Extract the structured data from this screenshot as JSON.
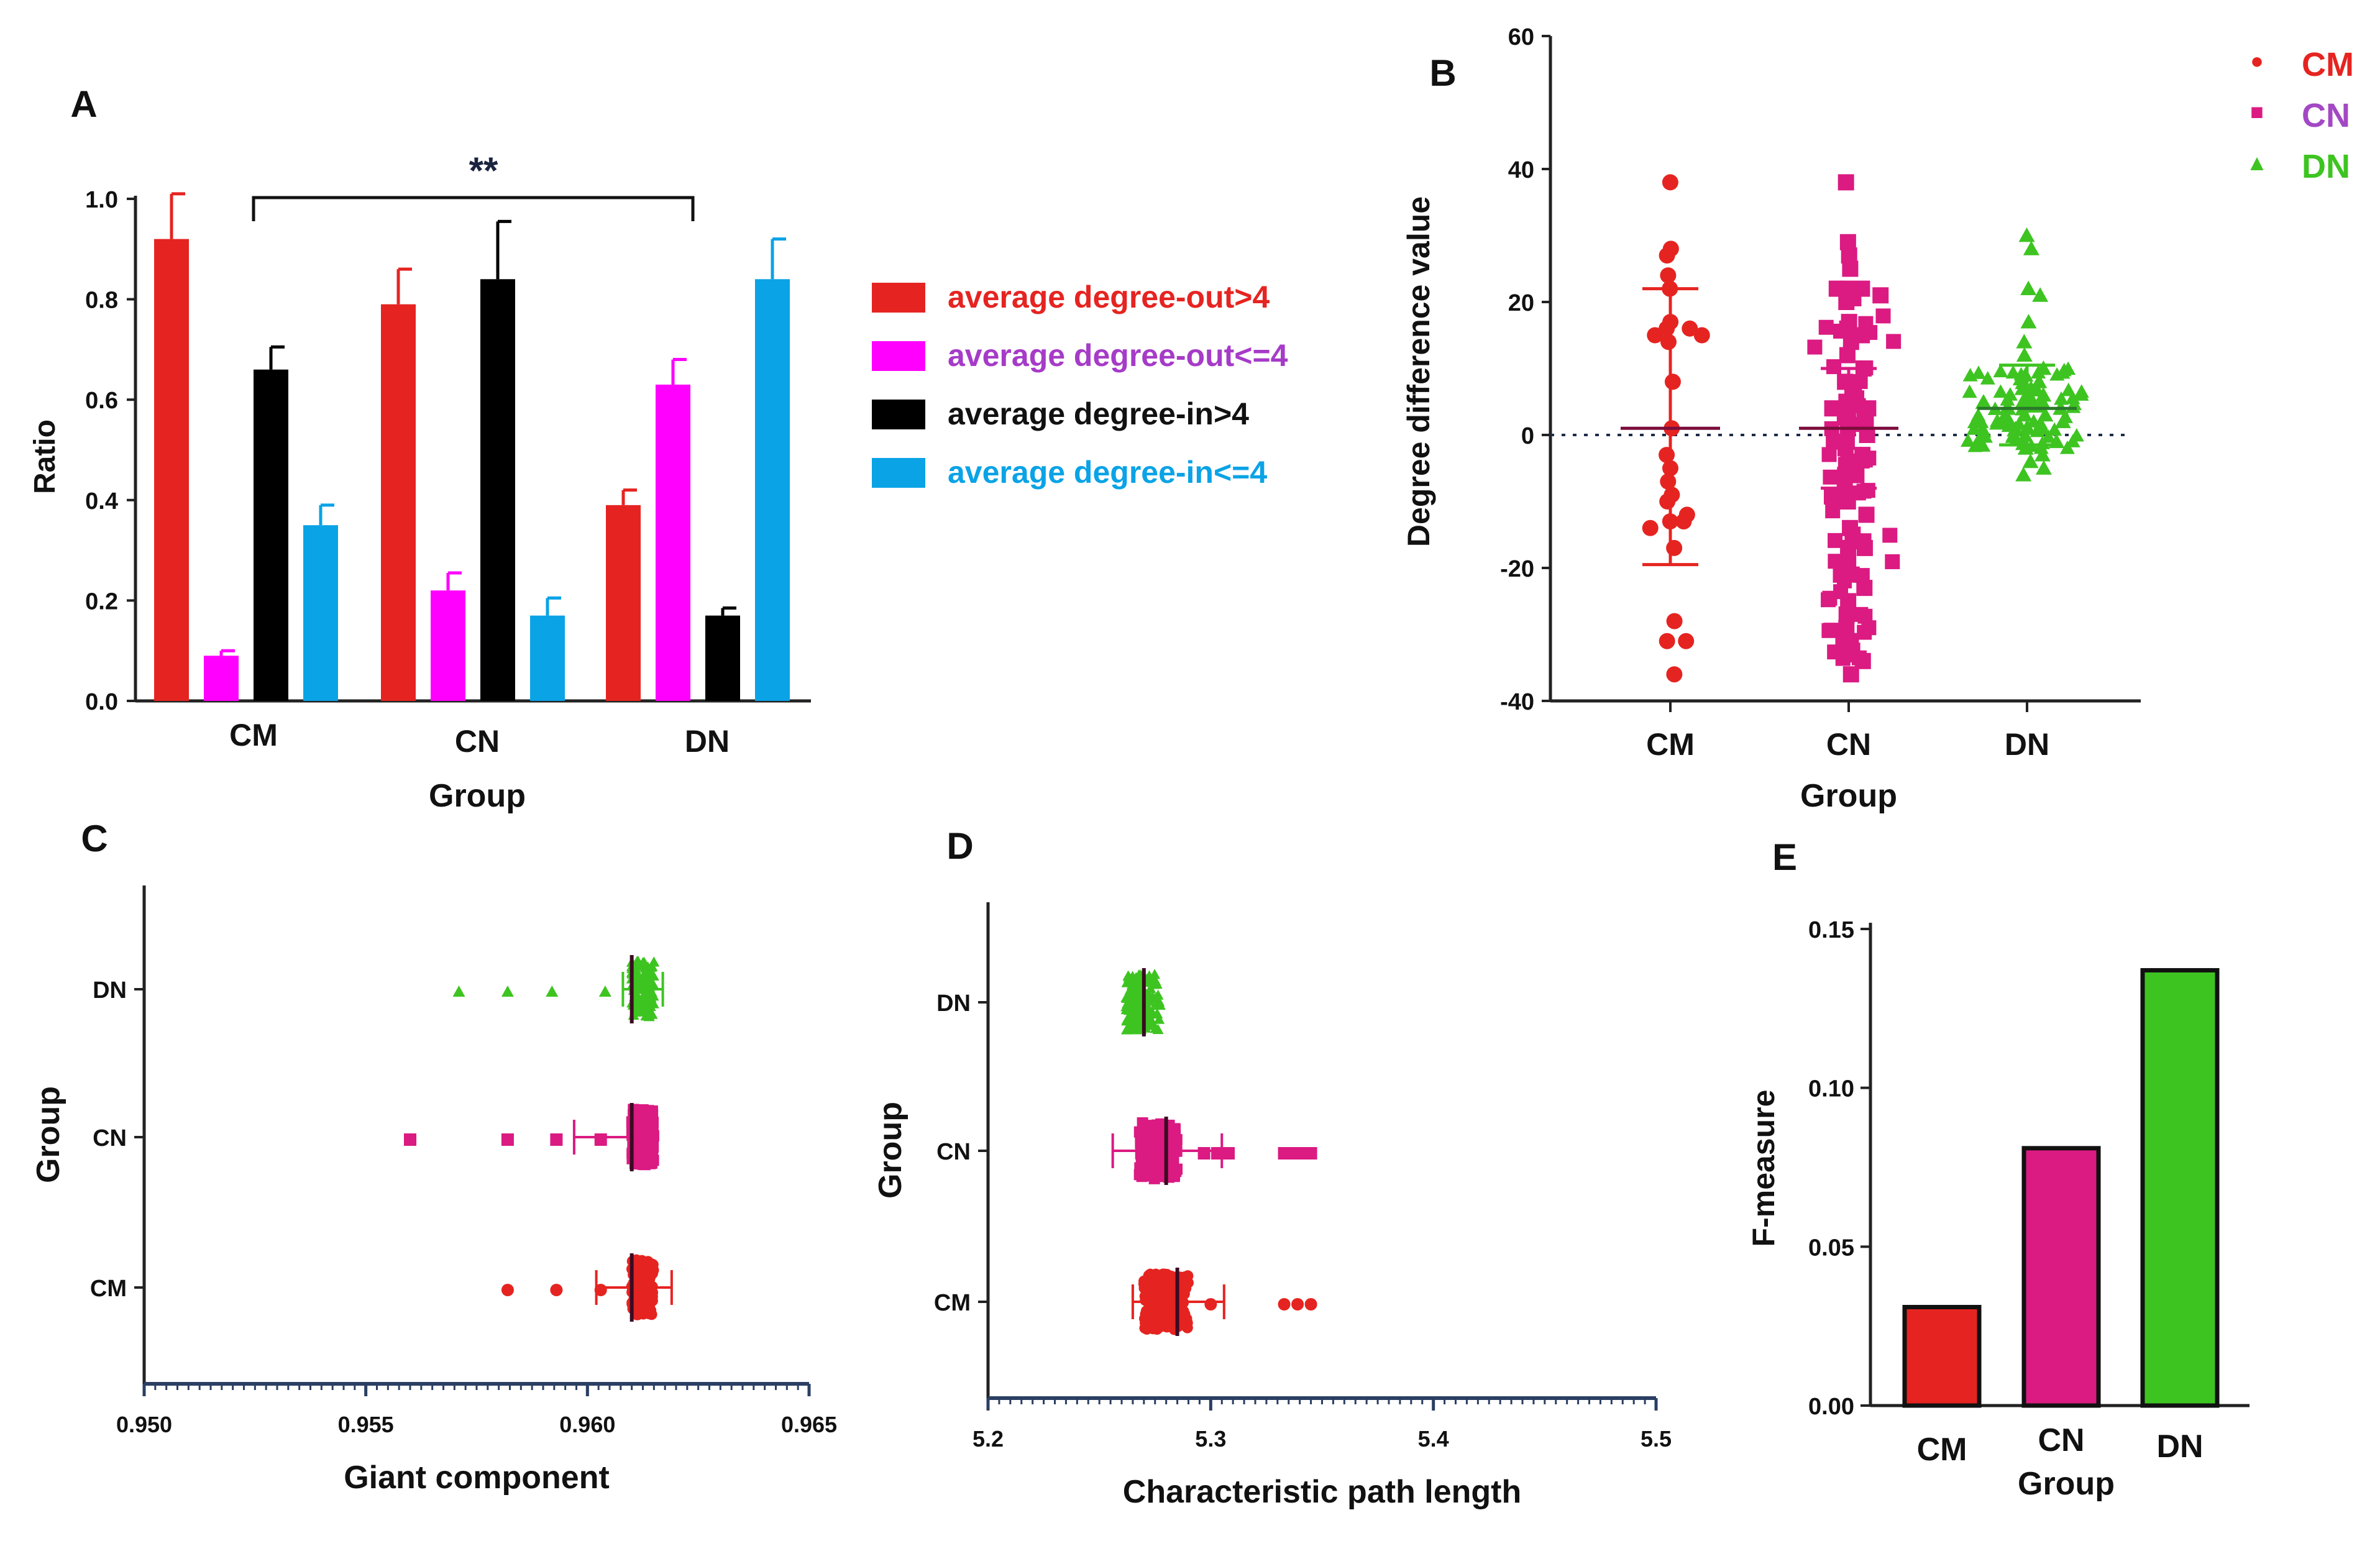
{
  "colors": {
    "cm": "#e52421",
    "cn": "#db1a82",
    "dn": "#3ec421",
    "magenta": "#ff00ff",
    "black": "#000000",
    "blue": "#0aa3e6",
    "cn_legend_text": "#a348c4"
  },
  "chart_data": [
    {
      "id": "A",
      "panel_label": "A",
      "type": "bar",
      "title": "",
      "xlabel": "Group",
      "ylabel": "Ratio",
      "ylim": [
        0,
        1.0
      ],
      "yticks": [
        "0.0",
        "0.2",
        "0.4",
        "0.6",
        "0.8",
        "1.0"
      ],
      "categories": [
        "CM",
        "CN",
        "DN"
      ],
      "series": [
        {
          "name": "average degree-out>4",
          "color_key": "cm",
          "values": [
            0.92,
            0.79,
            0.39
          ],
          "errors": [
            0.09,
            0.07,
            0.03
          ]
        },
        {
          "name": "average degree-out<=4",
          "color_key": "magenta",
          "values": [
            0.09,
            0.22,
            0.63
          ],
          "errors": [
            0.01,
            0.035,
            0.05
          ]
        },
        {
          "name": "average degree-in>4",
          "color_key": "black",
          "values": [
            0.66,
            0.84,
            0.17
          ],
          "errors": [
            0.045,
            0.115,
            0.015
          ]
        },
        {
          "name": "average degree-in<=4",
          "color_key": "blue",
          "values": [
            0.35,
            0.17,
            0.84
          ],
          "errors": [
            0.04,
            0.035,
            0.08
          ]
        }
      ],
      "significance": {
        "label": "**",
        "from": "CM",
        "to": "DN"
      }
    },
    {
      "id": "B",
      "panel_label": "B",
      "type": "scatter",
      "xlabel": "Group",
      "ylabel": "Degree difference value",
      "ylim": [
        -40,
        60
      ],
      "yticks": [
        "-40",
        "-20",
        "0",
        "20",
        "40",
        "60"
      ],
      "categories": [
        "CM",
        "CN",
        "DN"
      ],
      "legend": [
        {
          "name": "CM",
          "marker": "●",
          "color_key": "cm"
        },
        {
          "name": "CN",
          "marker": "■",
          "color_key": "cn"
        },
        {
          "name": "DN",
          "marker": "▲",
          "color_key": "dn"
        }
      ],
      "reference_line": 0,
      "series": [
        {
          "name": "CM",
          "marker": "circle",
          "mean": 1,
          "sd_low": -19.5,
          "sd_high": 22,
          "values": [
            38,
            28,
            27,
            24,
            22,
            17,
            16,
            16,
            15,
            15,
            14,
            8,
            1,
            -3,
            -5,
            -7,
            -9,
            -10,
            -12,
            -13,
            -13,
            -14,
            -17,
            -28,
            -31,
            -31,
            -36
          ]
        },
        {
          "name": "CN",
          "marker": "square",
          "mean": 1,
          "sd_low": -8,
          "sd_high": 10,
          "values": [
            38,
            29,
            27,
            25,
            22,
            22,
            22,
            21,
            20,
            17,
            16,
            15,
            14,
            12,
            10,
            8,
            6,
            5,
            4,
            4,
            3,
            2,
            1,
            0,
            -1,
            -2,
            -3,
            -4,
            -6,
            -8,
            -10,
            -12,
            -14,
            -15,
            -16,
            -17,
            -17,
            -19,
            -21,
            -23,
            -25,
            -27,
            -29,
            -31,
            -33,
            -34,
            -36
          ]
        },
        {
          "name": "DN",
          "marker": "triangle",
          "mean": 4,
          "sd_low": -1.5,
          "sd_high": 10.5,
          "values": [
            30,
            28,
            22,
            21,
            17,
            14,
            12,
            10,
            9,
            8,
            7,
            6,
            5,
            5,
            4,
            4,
            3,
            3,
            2,
            2,
            1,
            1,
            0,
            -1,
            -2,
            -3,
            -4,
            -5,
            -6
          ]
        }
      ]
    },
    {
      "id": "C",
      "panel_label": "C",
      "type": "scatter",
      "orientation": "horizontal",
      "xlabel": "Giant component",
      "ylabel": "Group",
      "xlim": [
        0.95,
        0.965
      ],
      "xticks": [
        "0.950",
        "0.955",
        "0.960",
        "0.965"
      ],
      "categories": [
        "DN",
        "CN",
        "CM"
      ],
      "series": [
        {
          "name": "DN",
          "marker": "triangle",
          "mean": 0.961,
          "sd_low": 0.9608,
          "sd_high": 0.9617,
          "outliers": [
            0.9571,
            0.9582,
            0.9592,
            0.9604
          ],
          "cluster": [
            0.961,
            0.9615
          ]
        },
        {
          "name": "CN",
          "marker": "square",
          "mean": 0.961,
          "sd_low": 0.9597,
          "sd_high": 0.9614,
          "outliers": [
            0.956,
            0.9582,
            0.9593,
            0.9603
          ],
          "cluster": [
            0.961,
            0.9615
          ]
        },
        {
          "name": "CM",
          "marker": "circle",
          "mean": 0.961,
          "sd_low": 0.9602,
          "sd_high": 0.9619,
          "outliers": [
            0.9582,
            0.9593,
            0.9603
          ],
          "cluster": [
            0.961,
            0.9615
          ]
        }
      ]
    },
    {
      "id": "D",
      "panel_label": "D",
      "type": "scatter",
      "orientation": "horizontal",
      "xlabel": "Characteristic path length",
      "ylabel": "Group",
      "xlim": [
        5.2,
        5.5
      ],
      "xticks": [
        "5.2",
        "5.3",
        "5.4",
        "5.5"
      ],
      "categories": [
        "DN",
        "CN",
        "CM"
      ],
      "series": [
        {
          "name": "DN",
          "marker": "triangle",
          "mean": 5.27,
          "sd_low": 5.267,
          "sd_high": 5.274,
          "outliers": [
            5.277
          ],
          "cluster": [
            5.262,
            5.277
          ]
        },
        {
          "name": "CN",
          "marker": "square",
          "mean": 5.28,
          "sd_low": 5.256,
          "sd_high": 5.305,
          "outliers": [
            5.297,
            5.303,
            5.308,
            5.333,
            5.337,
            5.341,
            5.345
          ],
          "cluster": [
            5.268,
            5.285
          ]
        },
        {
          "name": "CM",
          "marker": "circle",
          "mean": 5.285,
          "sd_low": 5.265,
          "sd_high": 5.306,
          "outliers": [
            5.3,
            5.333,
            5.339,
            5.345
          ],
          "cluster": [
            5.27,
            5.29
          ]
        }
      ]
    },
    {
      "id": "E",
      "panel_label": "E",
      "type": "bar",
      "xlabel": "Group",
      "ylabel": "F-measure",
      "ylim": [
        0,
        0.15
      ],
      "yticks": [
        "0.00",
        "0.05",
        "0.10",
        "0.15"
      ],
      "categories": [
        "CM",
        "CN",
        "DN"
      ],
      "values": [
        0.031,
        0.081,
        0.137
      ],
      "color_keys": [
        "cm",
        "cn",
        "dn"
      ]
    }
  ]
}
